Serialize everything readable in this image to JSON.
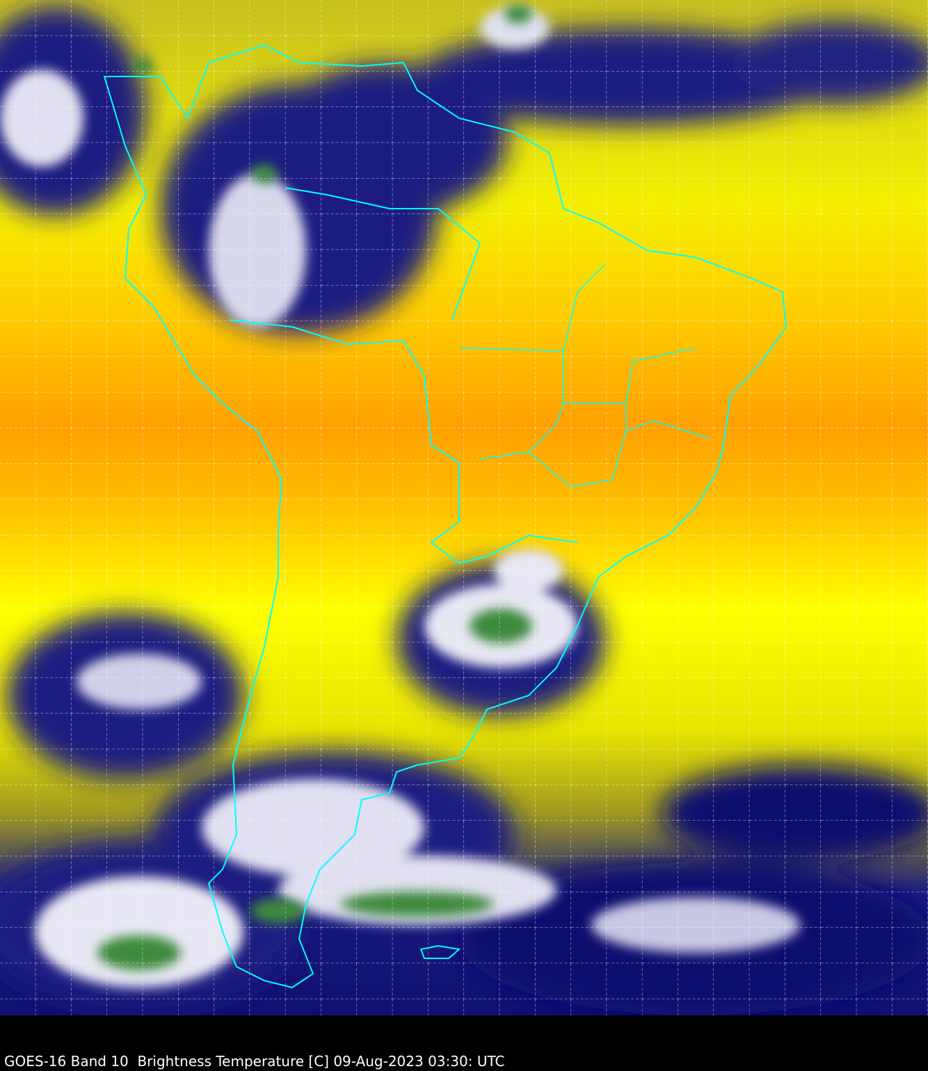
{
  "map": {
    "caption": "GOES-16 Band 10  Brightness Temperature [C] 09-Aug-2023 03:30: UTC",
    "satellite": "GOES-16",
    "band": "Band 10",
    "variable": "Brightness Temperature [C]",
    "datetime": "09-Aug-2023 03:30: UTC",
    "colors": {
      "warm_orange": "#ff9900",
      "dry_yellow": "#ffff00",
      "moist_navy": "#0a0a6e",
      "cloud_white": "#ffffff",
      "cold_green": "#3c8a3c",
      "border_cyan": "#00ffff",
      "grid_white": "#ffffff",
      "background": "#000000"
    },
    "grid": true
  }
}
